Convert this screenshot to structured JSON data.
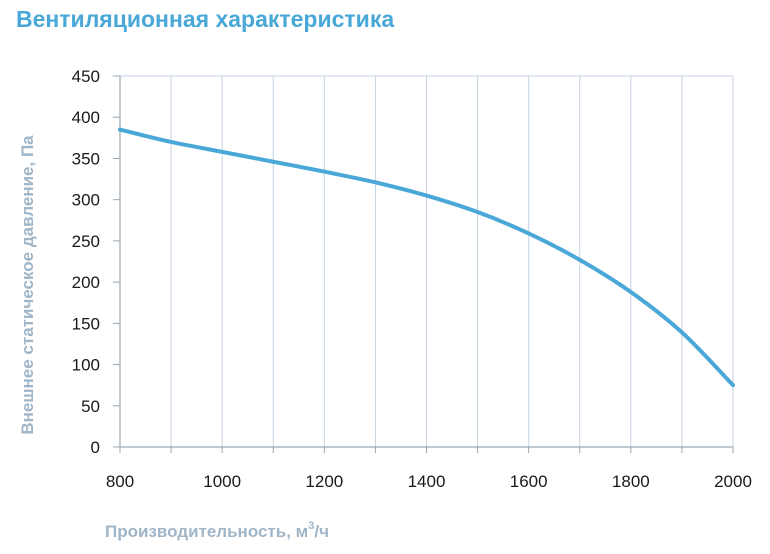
{
  "chart_data": {
    "type": "line",
    "title": "Вентиляционная характеристика",
    "xlabel": "Производительность, м³/ч",
    "xlabel_main": "Производительность, м",
    "xlabel_sup": "3",
    "xlabel_tail": "/ч",
    "ylabel": "Внешнее статическое давление, Па",
    "xlim": [
      800,
      2000
    ],
    "ylim": [
      0,
      450
    ],
    "x_ticks": [
      800,
      1000,
      1200,
      1400,
      1600,
      1800,
      2000
    ],
    "x_grid": [
      800,
      900,
      1000,
      1100,
      1200,
      1300,
      1400,
      1500,
      1600,
      1700,
      1800,
      1900,
      2000
    ],
    "y_ticks": [
      0,
      50,
      100,
      150,
      200,
      250,
      300,
      350,
      400,
      450
    ],
    "grid": "vertical",
    "series": [
      {
        "color": "#4aa8d8",
        "x": [
          800,
          900,
          1000,
          1100,
          1200,
          1300,
          1400,
          1500,
          1600,
          1700,
          1800,
          1900,
          2000
        ],
        "y": [
          385,
          370,
          358,
          346,
          334,
          321,
          305,
          285,
          259,
          227,
          188,
          139,
          75
        ]
      }
    ]
  },
  "colors": {
    "title": "#4aa8d8",
    "line": "#4aa8d8",
    "grid": "#c4d2df",
    "axis_title": "#9fb5c8"
  }
}
